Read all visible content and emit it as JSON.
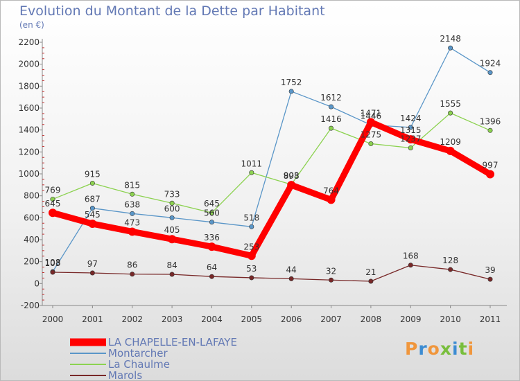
{
  "title": "Evolution du Montant de la Dette par Habitant",
  "subtitle": "(en €)",
  "brand": {
    "text": "Proxiti",
    "colors": [
      "#f0963c",
      "#3c8cd2",
      "#f0963c",
      "#78be3c",
      "#3c8cd2",
      "#78be3c",
      "#f0963c"
    ]
  },
  "chart_data": {
    "type": "line",
    "x": [
      "2000",
      "2001",
      "2002",
      "2003",
      "2004",
      "2005",
      "2006",
      "2007",
      "2008",
      "2009",
      "2010",
      "2011"
    ],
    "ylim": [
      -200,
      2200
    ],
    "yticks": [
      "-200",
      "0",
      "200",
      "400",
      "600",
      "800",
      "1000",
      "1200",
      "1400",
      "1600",
      "1800",
      "2000",
      "2200"
    ],
    "grid": false,
    "legend_position": "bottom-left",
    "series": [
      {
        "name": "LA CHAPELLE-EN-LAFAYE",
        "color": "#ff0000",
        "values": [
          645,
          545,
          473,
          405,
          336,
          253,
          898,
          764,
          1471,
          1315,
          1209,
          997
        ]
      },
      {
        "name": "Montarcher",
        "color": "#5a96c8",
        "values": [
          108,
          687,
          638,
          600,
          560,
          518,
          1752,
          1612,
          1446,
          1424,
          2148,
          1924
        ]
      },
      {
        "name": "La Chaulme",
        "color": "#8cd250",
        "values": [
          769,
          915,
          815,
          733,
          645,
          1011,
          903,
          1416,
          1275,
          1237,
          1555,
          1396
        ]
      },
      {
        "name": "Marols",
        "color": "#782828",
        "values": [
          103,
          97,
          86,
          84,
          64,
          53,
          44,
          32,
          21,
          168,
          128,
          39
        ]
      }
    ]
  }
}
